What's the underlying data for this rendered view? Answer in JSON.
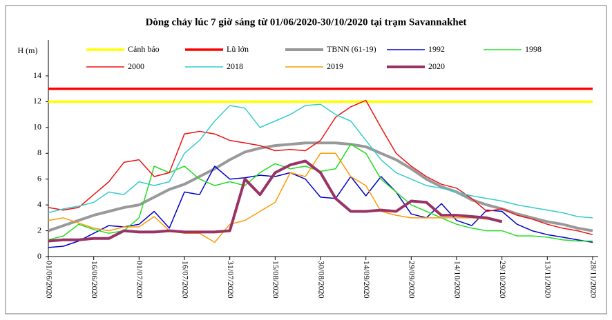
{
  "chart_data": {
    "type": "line",
    "title": "Dòng chảy lúc 7 giờ sáng từ 01/06/2020-30/10/2020 tại trạm Savannakhet",
    "y_label": "H (m)",
    "categories": [
      "01/06/2020",
      null,
      null,
      "16/06/2020",
      null,
      null,
      "01/07/2020",
      null,
      null,
      "16/07/2020",
      null,
      null,
      "31/07/2020",
      null,
      null,
      "15/08/2020",
      null,
      null,
      "30/08/2020",
      null,
      null,
      "14/09/2020",
      null,
      null,
      "29/09/2020",
      null,
      null,
      "14/10/2020",
      null,
      null,
      "29/10/2020",
      null,
      null,
      "13/11/2020",
      null,
      null,
      "28/11/2020"
    ],
    "ylim": [
      0,
      14
    ],
    "yticks": [
      0,
      2,
      4,
      6,
      8,
      10,
      12,
      14
    ],
    "grid": false,
    "legend": "top",
    "series": [
      {
        "name": "Cảnh báo",
        "color": "#ffff00",
        "line_width": 3.5,
        "values": [
          12,
          12,
          12,
          12,
          12,
          12,
          12,
          12,
          12,
          12,
          12,
          12,
          12,
          12,
          12,
          12,
          12,
          12,
          12,
          12,
          12,
          12,
          12,
          12,
          12,
          12,
          12,
          12,
          12,
          12,
          12,
          12,
          12,
          12,
          12,
          12,
          12
        ]
      },
      {
        "name": "Lũ lớn",
        "color": "#ff0000",
        "line_width": 3.5,
        "values": [
          13,
          13,
          13,
          13,
          13,
          13,
          13,
          13,
          13,
          13,
          13,
          13,
          13,
          13,
          13,
          13,
          13,
          13,
          13,
          13,
          13,
          13,
          13,
          13,
          13,
          13,
          13,
          13,
          13,
          13,
          13,
          13,
          13,
          13,
          13,
          13,
          13
        ]
      },
      {
        "name": "TBNN (61-19)",
        "color": "#999999",
        "line_width": 4,
        "values": [
          2.0,
          2.4,
          2.8,
          3.2,
          3.5,
          3.8,
          4.0,
          4.6,
          5.2,
          5.6,
          6.2,
          6.8,
          7.5,
          8.1,
          8.4,
          8.6,
          8.7,
          8.8,
          8.8,
          8.8,
          8.7,
          8.5,
          8.0,
          7.5,
          6.8,
          6.0,
          5.4,
          5.0,
          4.4,
          4.0,
          3.7,
          3.3,
          3.0,
          2.7,
          2.5,
          2.2,
          2.0
        ]
      },
      {
        "name": "1992",
        "color": "#0000cc",
        "line_width": 1.5,
        "values": [
          0.7,
          0.8,
          1.2,
          1.8,
          2.4,
          2.3,
          2.5,
          3.5,
          2.2,
          5.0,
          4.8,
          7.0,
          6.0,
          6.1,
          6.3,
          6.2,
          6.5,
          6.0,
          4.6,
          4.5,
          6.2,
          4.7,
          6.2,
          5.0,
          3.3,
          3.0,
          4.1,
          2.8,
          2.4,
          3.6,
          3.5,
          2.5,
          2.0,
          1.7,
          1.5,
          1.3,
          1.1
        ]
      },
      {
        "name": "1998",
        "color": "#22dd22",
        "line_width": 1.5,
        "values": [
          1.3,
          1.6,
          2.5,
          2.1,
          1.8,
          2.0,
          3.0,
          7.0,
          6.5,
          7.0,
          6.0,
          5.5,
          5.8,
          5.5,
          6.5,
          7.2,
          6.8,
          7.0,
          6.6,
          6.8,
          8.7,
          8.0,
          6.0,
          5.0,
          4.0,
          3.5,
          3.0,
          2.5,
          2.2,
          2.0,
          2.0,
          1.6,
          1.6,
          1.5,
          1.3,
          1.2,
          1.2
        ]
      },
      {
        "name": "2000",
        "color": "#ee1111",
        "line_width": 1.5,
        "values": [
          3.8,
          3.6,
          3.8,
          4.8,
          5.8,
          7.3,
          7.5,
          6.2,
          6.5,
          9.5,
          9.7,
          9.5,
          9.0,
          8.8,
          8.6,
          8.2,
          8.3,
          8.2,
          9.0,
          10.8,
          11.6,
          12.1,
          10.0,
          8.0,
          7.0,
          6.2,
          5.6,
          5.3,
          4.5,
          3.5,
          3.7,
          3.2,
          2.9,
          2.5,
          2.2,
          2.0,
          1.7
        ]
      },
      {
        "name": "2018",
        "color": "#33cccc",
        "line_width": 1.5,
        "values": [
          3.4,
          3.7,
          3.9,
          4.2,
          5.0,
          4.8,
          5.8,
          5.5,
          5.8,
          8.0,
          9.0,
          10.5,
          11.7,
          11.5,
          10.0,
          10.5,
          11.0,
          11.7,
          11.8,
          11.0,
          10.5,
          9.0,
          7.5,
          6.5,
          6.0,
          5.5,
          5.3,
          5.0,
          4.7,
          4.5,
          4.3,
          4.0,
          3.8,
          3.6,
          3.4,
          3.1,
          3.0
        ]
      },
      {
        "name": "2019",
        "color": "#ff9900",
        "line_width": 1.5,
        "values": [
          2.8,
          3.0,
          2.6,
          2.2,
          2.0,
          2.3,
          2.3,
          3.1,
          2.0,
          1.8,
          1.8,
          1.1,
          2.5,
          2.8,
          3.5,
          4.2,
          6.5,
          6.2,
          8.0,
          8.0,
          6.2,
          5.5,
          3.5,
          3.2,
          3.0,
          3.0,
          3.0,
          3.0,
          3.0,
          2.9,
          2.8,
          null,
          null,
          null,
          null,
          null,
          null
        ]
      },
      {
        "name": "2020",
        "color": "#993366",
        "line_width": 4,
        "values": [
          1.2,
          1.3,
          1.3,
          1.4,
          1.4,
          2.0,
          1.9,
          1.9,
          2.0,
          1.9,
          1.9,
          1.9,
          2.0,
          6.0,
          4.8,
          6.5,
          7.1,
          7.4,
          6.5,
          4.5,
          3.5,
          3.5,
          3.6,
          3.5,
          4.3,
          4.2,
          3.2,
          3.2,
          3.1,
          3.0,
          2.7,
          null,
          null,
          null,
          null,
          null,
          null
        ]
      }
    ]
  }
}
